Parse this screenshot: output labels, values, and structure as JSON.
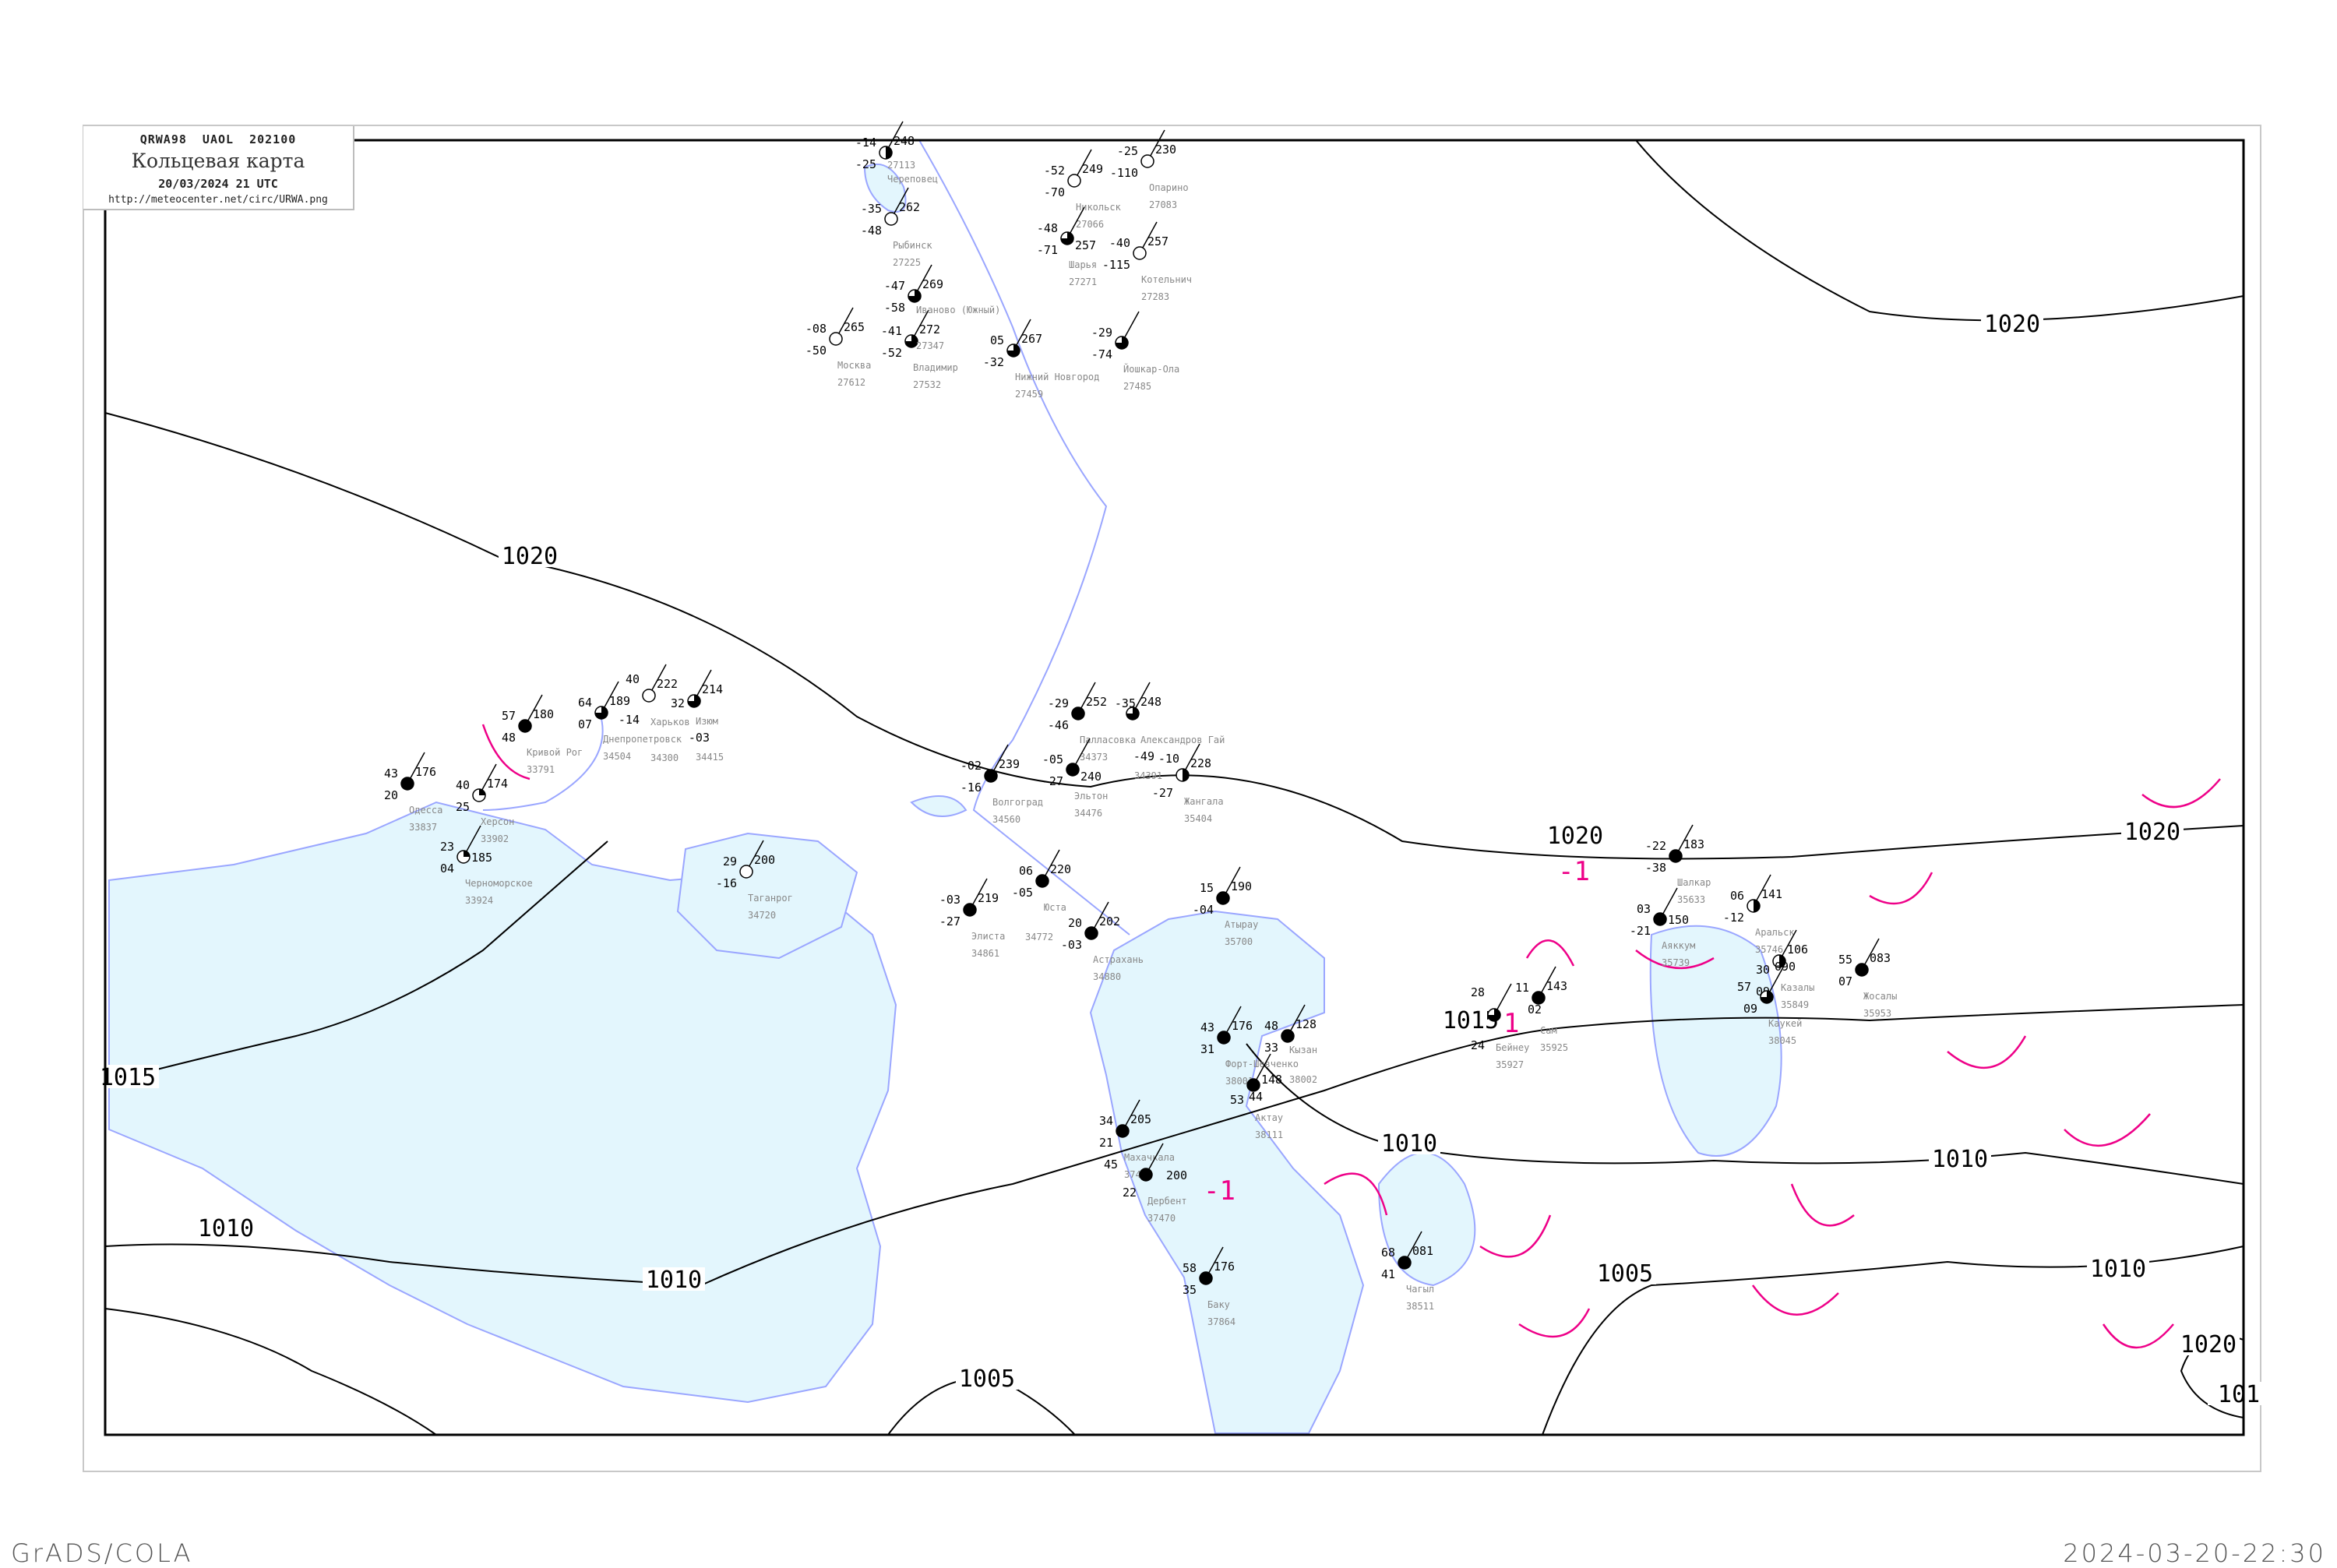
{
  "header": {
    "code": "QRWA98  UAOL  202100",
    "title": "Кольцевая карта",
    "date": "20/03/2024 21 UTC",
    "url": "http://meteocenter.net/circ/URWA.png"
  },
  "footer": {
    "left": "GrADS/COLA",
    "right": "2024-03-20-22:30"
  },
  "colors": {
    "water": "#e3f6fd",
    "coast": "#9aa6ff",
    "isobar": "#000000",
    "isallobar": "#ee0088",
    "station_name": "#888888"
  },
  "isobars": [
    {
      "value": "1020"
    },
    {
      "value": "1020"
    },
    {
      "value": "1020"
    },
    {
      "value": "1020"
    },
    {
      "value": "1020"
    },
    {
      "value": "1015"
    },
    {
      "value": "1015"
    },
    {
      "value": "1010"
    },
    {
      "value": "1010"
    },
    {
      "value": "1010"
    },
    {
      "value": "1010"
    },
    {
      "value": "1010"
    },
    {
      "value": "1005"
    },
    {
      "value": "1005"
    },
    {
      "value": "101"
    }
  ],
  "isallobar_labels": [
    "-1",
    "-1",
    "1"
  ],
  "stations": [
    {
      "name": "Кривой Рог",
      "id": "33791",
      "t": "57",
      "p": "180",
      "td": "48",
      "cloud": 1
    },
    {
      "name": "Одесса",
      "id": "33837",
      "t": "43",
      "p": "176",
      "td": "20",
      "cloud": 1
    },
    {
      "name": "Херсон",
      "id": "33902",
      "t": "40",
      "p": "174",
      "td": "25",
      "cloud": 0.25
    },
    {
      "name": "Днепропетровск",
      "id": "34504",
      "t": "64",
      "p": "189",
      "td": "07",
      "cloud": 0.75
    },
    {
      "name": "Харьков",
      "id": "34300",
      "t": "40",
      "p": "222",
      "td": "-14",
      "cloud": 0
    },
    {
      "name": "Изюм",
      "id": "34415",
      "t": "32",
      "p": "214",
      "td": "-03",
      "cloud": 0.75
    },
    {
      "name": "Таганрог",
      "id": "34720",
      "t": "29",
      "p": "200",
      "td": "-16",
      "cloud": 0
    },
    {
      "name": "Черноморское",
      "id": "33924",
      "t": "23",
      "p": "185",
      "td": "04",
      "cloud": 0.25
    },
    {
      "name": "Волгоград",
      "id": "34560",
      "t": "-02",
      "p": "239",
      "td": "-16",
      "cloud": 1
    },
    {
      "name": "Палласовка",
      "id": "34373",
      "t": "-29",
      "p": "252",
      "td": "-46",
      "cloud": 1
    },
    {
      "name": "Александров Гай",
      "id": "34391",
      "t": "-35",
      "p": "248",
      "td": "-49",
      "cloud": 0.75
    },
    {
      "name": "Эльтон",
      "id": "34476",
      "t": "-05",
      "p": "240",
      "td": "-27",
      "cloud": 1
    },
    {
      "name": "Элиста",
      "id": "34861",
      "t": "-03",
      "p": "219",
      "td": "-27",
      "cloud": 1
    },
    {
      "name": "Атырау",
      "id": "35700",
      "t": "15",
      "p": "190",
      "td": "-04",
      "cloud": 1
    },
    {
      "name": "Астрахань",
      "id": "34880",
      "t": "20",
      "p": "202",
      "td": "-03",
      "cloud": 1
    },
    {
      "name": "Юста",
      "id": "34772",
      "t": "06",
      "p": "220",
      "td": "-05",
      "cloud": 1
    },
    {
      "name": "Жангала",
      "id": "35404",
      "t": "-10",
      "p": "228",
      "td": "-27",
      "cloud": 0.5
    },
    {
      "name": "Шалкар",
      "id": "35633",
      "t": "-22",
      "p": "183",
      "td": "-38",
      "cloud": 1
    },
    {
      "name": "Аральск",
      "id": "35746",
      "t": "06",
      "p": "141",
      "td": "-12",
      "cloud": 0.5
    },
    {
      "name": "Аяккум",
      "id": "35739",
      "t": "03",
      "p": "150",
      "td": "-21",
      "cloud": 1
    },
    {
      "name": "Казалы",
      "id": "35849",
      "t": "30",
      "p": "106",
      "td": "09",
      "cloud": 0.5
    },
    {
      "name": "Каукей",
      "id": "38045",
      "t": "57",
      "p": "090",
      "td": "09",
      "cloud": 0.75
    },
    {
      "name": "Сам",
      "id": "35925",
      "t": "11",
      "p": "143",
      "td": "02",
      "cloud": 1
    },
    {
      "name": "Бейнеу",
      "id": "35927",
      "t": "28",
      "p": "",
      "td": "24",
      "cloud": 0.75
    },
    {
      "name": "Жосалы",
      "id": "35953",
      "t": "55",
      "p": "083",
      "td": "07",
      "cloud": 1
    },
    {
      "name": "Форт-Шевченко",
      "id": "38001",
      "t": "43",
      "p": "176",
      "td": "31",
      "cloud": 1
    },
    {
      "name": "Кызан",
      "id": "38002",
      "t": "48",
      "p": "128",
      "td": "33",
      "cloud": 1
    },
    {
      "name": "Актау",
      "id": "38111",
      "t": "53",
      "p": "148",
      "td": "44",
      "cloud": 1
    },
    {
      "name": "Махачкала",
      "id": "37472",
      "t": "34",
      "p": "205",
      "td": "21",
      "cloud": 1
    },
    {
      "name": "Дербент",
      "id": "37470",
      "t": "45",
      "p": "200",
      "td": "22",
      "cloud": 1
    },
    {
      "name": "Баку",
      "id": "37864",
      "t": "58",
      "p": "176",
      "td": "35",
      "cloud": 1
    },
    {
      "name": "Чагыл",
      "id": "38511",
      "t": "68",
      "p": "081",
      "td": "41",
      "cloud": 1
    },
    {
      "name": "Москва",
      "id": "27612",
      "t": "-08",
      "p": "265",
      "td": "-50",
      "cloud": 0
    },
    {
      "name": "Владимир",
      "id": "27532",
      "t": "-41",
      "p": "272",
      "td": "-52",
      "cloud": 0.75
    },
    {
      "name": "Иваново (Южный)",
      "id": "27347",
      "t": "-47",
      "p": "269",
      "td": "-58",
      "cloud": 0.75
    },
    {
      "name": "Нижний Новгород",
      "id": "27459",
      "t": "05",
      "p": "267",
      "td": "-32",
      "cloud": 0.75
    },
    {
      "name": "Рыбинск",
      "id": "27225",
      "t": "-35",
      "p": "262",
      "td": "-48",
      "cloud": 0
    },
    {
      "name": "Никольск",
      "id": "27066",
      "t": "-52",
      "p": "249",
      "td": "-70",
      "cloud": 0
    },
    {
      "name": "Опарино",
      "id": "27083",
      "t": "-25",
      "p": "230",
      "td": "-110",
      "cloud": 0
    },
    {
      "name": "Шарья",
      "id": "27271",
      "t": "-48",
      "p": "257",
      "td": "-71",
      "cloud": 0.75
    },
    {
      "name": "Котельнич",
      "id": "27283",
      "t": "-40",
      "p": "257",
      "td": "-115",
      "cloud": 0
    },
    {
      "name": "Йошкар-Ола",
      "id": "27485",
      "t": "-29",
      "p": "",
      "td": "-74",
      "cloud": 0.75
    },
    {
      "name": "Череповец",
      "id": "27113",
      "t": "-14",
      "p": "248",
      "td": "-25",
      "cloud": 0.5
    }
  ]
}
